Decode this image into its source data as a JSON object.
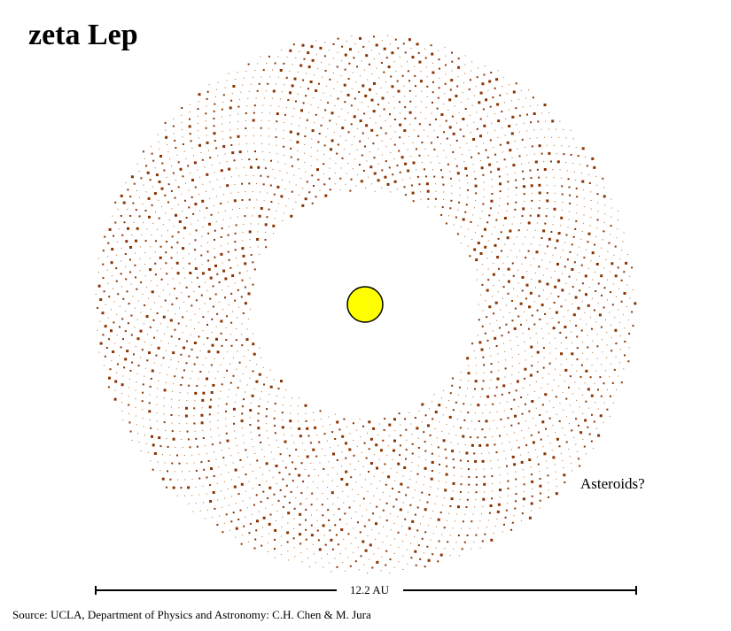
{
  "title": "zeta Lep",
  "belt_label": "Asteroids?",
  "scale_label": "12.2 AU",
  "source": "Source: UCLA, Department of Physics and Astronomy: C.H. Chen & M. Jura"
}
